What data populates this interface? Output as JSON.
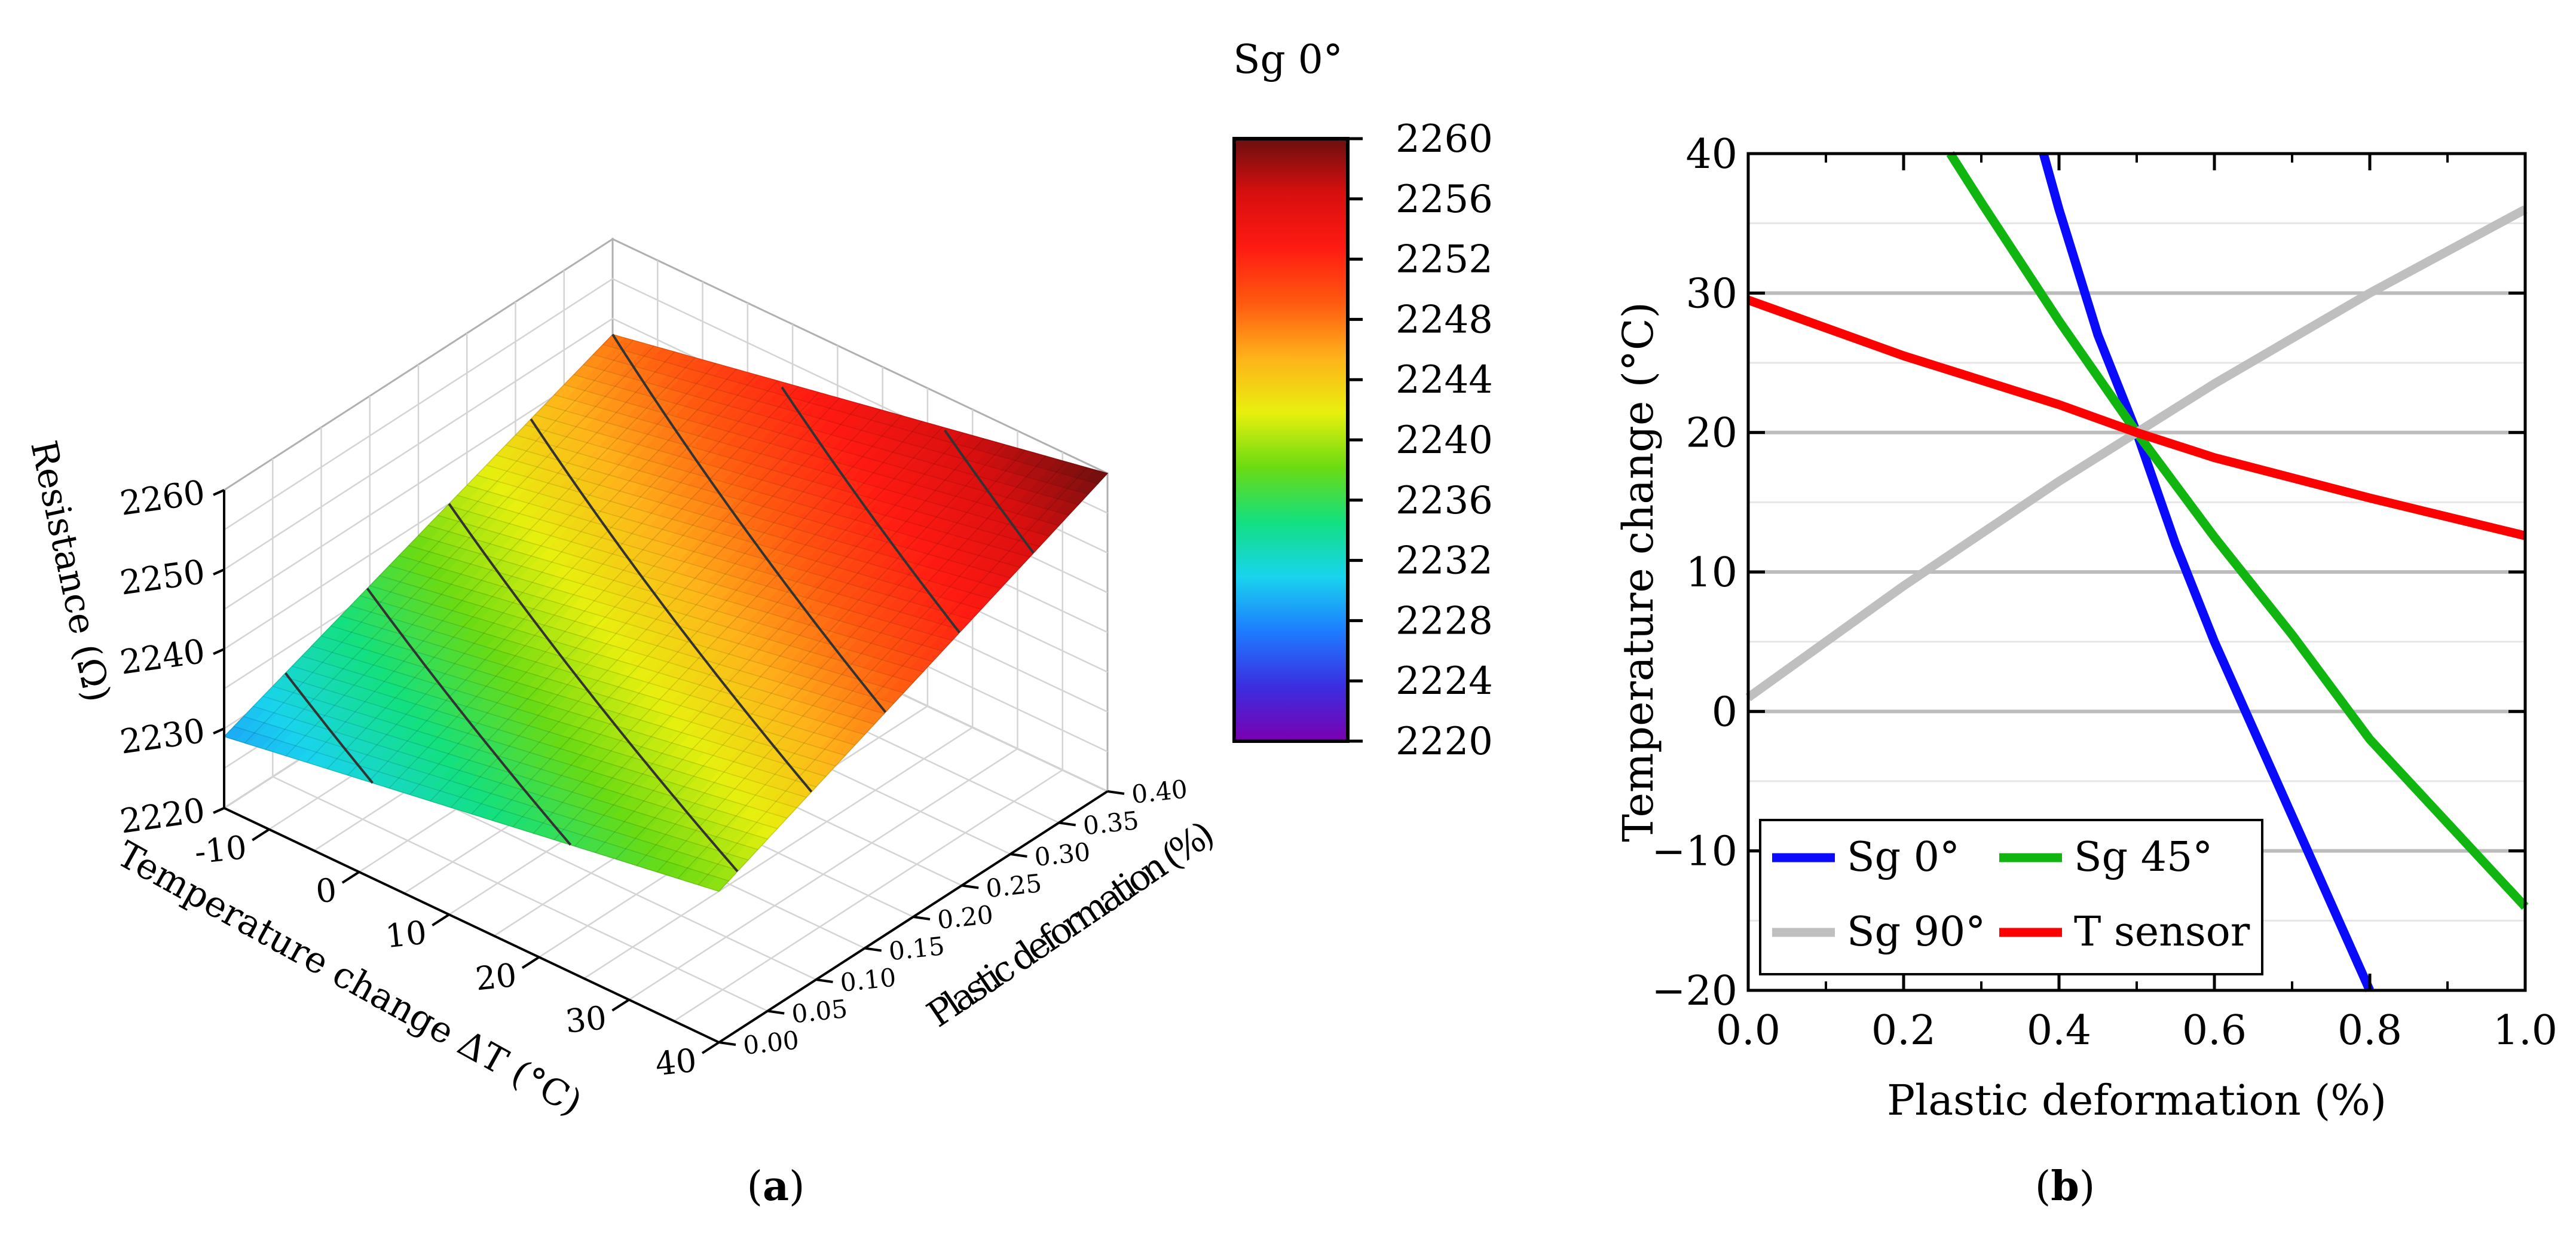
{
  "captions": {
    "a_open": "(",
    "a": "a",
    "a_close": ")",
    "b_open": "(",
    "b": "b",
    "b_close": ")"
  },
  "chart_data": [
    {
      "type": "surface3d",
      "panel": "a",
      "title": "Sg 0°",
      "xlabel": "Temperature change ΔT (°C)",
      "ylabel": "Plastic deformation (%)",
      "zlabel": "Resistance (Ω)",
      "x_ticks": [
        "-10",
        "0",
        "10",
        "20",
        "30",
        "40"
      ],
      "y_ticks": [
        "0.00",
        "0.05",
        "0.10",
        "0.15",
        "0.20",
        "0.25",
        "0.30",
        "0.35",
        "0.40"
      ],
      "z_ticks": [
        "2220",
        "2230",
        "2240",
        "2250",
        "2260"
      ],
      "xlim": [
        -15,
        40
      ],
      "ylim": [
        0,
        0.4
      ],
      "zlim": [
        2220,
        2260
      ],
      "corner_values": [
        {
          "temperature": -15,
          "deformation": 0.0,
          "resistance": 2229
        },
        {
          "temperature": 40,
          "deformation": 0.0,
          "resistance": 2239
        },
        {
          "temperature": -15,
          "deformation": 0.4,
          "resistance": 2248
        },
        {
          "temperature": 40,
          "deformation": 0.4,
          "resistance": 2260
        }
      ],
      "colorbar": {
        "range": [
          2220,
          2260
        ],
        "ticks": [
          "2260",
          "2256",
          "2252",
          "2248",
          "2244",
          "2240",
          "2236",
          "2232",
          "2228",
          "2224",
          "2220"
        ],
        "colors": [
          "#7a00b0",
          "#3a2ee0",
          "#1e7bff",
          "#19d4ee",
          "#12e080",
          "#6bdb12",
          "#e8f00e",
          "#ffb21a",
          "#ff5a10",
          "#ff1a12",
          "#d80f0f",
          "#6b0f0f"
        ]
      }
    },
    {
      "type": "line",
      "panel": "b",
      "xlabel": "Plastic deformation (%)",
      "ylabel": "Temperature change (°C)",
      "xlim": [
        0,
        1
      ],
      "ylim": [
        -20,
        40
      ],
      "x_ticks": [
        "0.0",
        "0.2",
        "0.4",
        "0.6",
        "0.8",
        "1.0"
      ],
      "y_ticks": [
        "−20",
        "−10",
        "0",
        "10",
        "20",
        "30",
        "40"
      ],
      "grid": true,
      "legend_position": "bottom-left",
      "series": [
        {
          "name": "Sg 0°",
          "color": "#0a0aff",
          "x": [
            0.38,
            0.4,
            0.45,
            0.5,
            0.55,
            0.6,
            0.7,
            0.8
          ],
          "y": [
            40,
            36,
            27,
            20,
            12,
            5,
            -7.5,
            -20
          ]
        },
        {
          "name": "Sg 45°",
          "color": "#10b510",
          "x": [
            0.26,
            0.3,
            0.4,
            0.5,
            0.6,
            0.7,
            0.8,
            0.9,
            1.0
          ],
          "y": [
            40,
            36.5,
            28,
            20,
            12.5,
            5.5,
            -2,
            -8,
            -14
          ]
        },
        {
          "name": "Sg 90°",
          "color": "#bfbfbf",
          "x": [
            0.0,
            0.2,
            0.4,
            0.5,
            0.6,
            0.8,
            1.0
          ],
          "y": [
            1,
            9,
            16.5,
            20,
            23.5,
            30,
            36
          ]
        },
        {
          "name": "T sensor",
          "color": "#ff0000",
          "x": [
            0.0,
            0.2,
            0.4,
            0.5,
            0.6,
            0.8,
            1.0
          ],
          "y": [
            29.5,
            25.5,
            22,
            20,
            18.2,
            15.3,
            12.6
          ]
        }
      ]
    }
  ]
}
